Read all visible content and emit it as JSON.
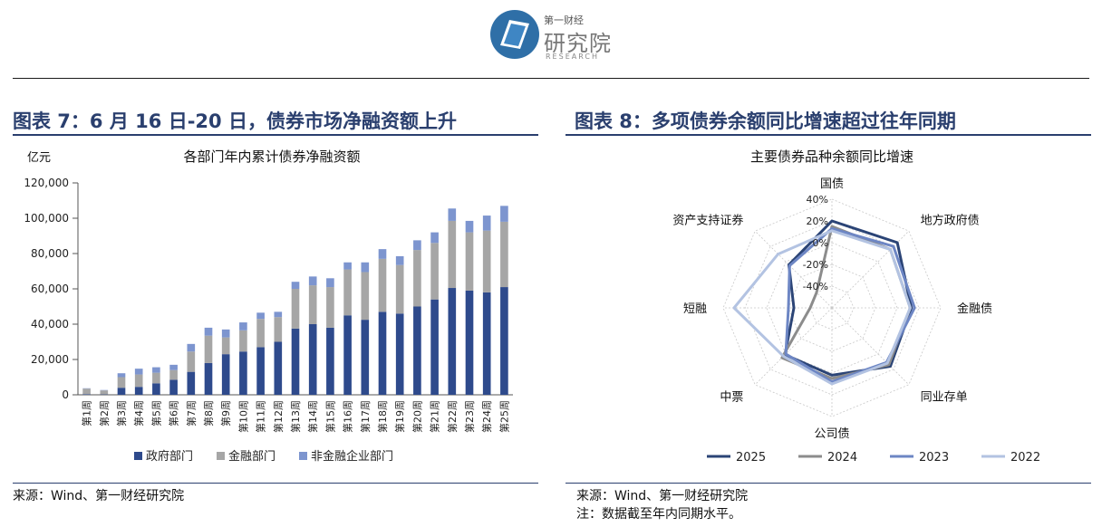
{
  "logo": {
    "small_text": "第一财经",
    "big_text": "研究院",
    "sub_text": "RESEARCH"
  },
  "left": {
    "heading": "图表 7：6 月 16 日-20 日，债券市场净融资额上升",
    "source": "来源：Wind、第一财经研究院",
    "chart_data": {
      "type": "bar",
      "stacked": true,
      "title": "各部门年内累计债券净融资额",
      "ylabel": "亿元",
      "ylim": [
        0,
        120000
      ],
      "yticks": [
        "0",
        "20,000",
        "40,000",
        "60,000",
        "80,000",
        "100,000",
        "120,000"
      ],
      "categories": [
        "第1周",
        "第2周",
        "第3周",
        "第4周",
        "第5周",
        "第6周",
        "第7周",
        "第8周",
        "第9周",
        "第10周",
        "第11周",
        "第12周",
        "第13周",
        "第14周",
        "第15周",
        "第16周",
        "第17周",
        "第18周",
        "第19周",
        "第20周",
        "第21周",
        "第22周",
        "第23周",
        "第24周",
        "第25周"
      ],
      "series": [
        {
          "name": "政府部门",
          "color": "#2e4a8c",
          "values": [
            300,
            200,
            4000,
            4500,
            6500,
            8500,
            13000,
            18000,
            23000,
            24500,
            27000,
            30000,
            37500,
            40000,
            38000,
            45000,
            42500,
            47000,
            46000,
            50000,
            54000,
            60500,
            59000,
            58000,
            61000
          ]
        },
        {
          "name": "金融部门",
          "color": "#a6a6a6",
          "values": [
            3200,
            2300,
            6000,
            7000,
            6000,
            5500,
            11500,
            15500,
            9500,
            12000,
            16000,
            14000,
            22500,
            22000,
            23000,
            26000,
            27000,
            30000,
            27500,
            32000,
            32000,
            38000,
            33000,
            35000,
            37000
          ]
        },
        {
          "name": "非金融企业部门",
          "color": "#7d95cf",
          "values": [
            200,
            200,
            2200,
            3300,
            3100,
            3000,
            4300,
            4500,
            4500,
            4500,
            3500,
            3000,
            4000,
            5000,
            5000,
            4000,
            5500,
            5500,
            5000,
            5500,
            6000,
            7000,
            6500,
            8500,
            9000
          ]
        }
      ],
      "legend_position": "bottom"
    }
  },
  "right": {
    "heading": "图表 8：多项债券余额同比增速超过往年同期",
    "source": "来源：Wind、第一财经研究院",
    "note": "注：数据截至年内同期水平。",
    "chart_data": {
      "type": "radar",
      "title": "主要债券品种余额同比增速",
      "categories": [
        "国债",
        "地方政府债",
        "金融债",
        "同业存单",
        "公司债",
        "中票",
        "短融",
        "资产支持证券"
      ],
      "rticks": [
        "-40%",
        "-20%",
        "0%",
        "20%",
        "40%"
      ],
      "rlim": [
        -60,
        40
      ],
      "series": [
        {
          "name": "2025",
          "color": "#2b4476",
          "values": [
            20,
            25,
            13,
            16,
            2,
            1,
            -25,
            -4
          ]
        },
        {
          "name": "2024",
          "color": "#8c8c8c",
          "values": [
            15,
            16,
            12,
            14,
            5,
            5,
            -40,
            -40
          ]
        },
        {
          "name": "2023",
          "color": "#6d86c4",
          "values": [
            13,
            20,
            16,
            11,
            8,
            0,
            -20,
            -5
          ]
        },
        {
          "name": "2022",
          "color": "#b3c3e2",
          "values": [
            11,
            16,
            12,
            12,
            10,
            3,
            30,
            10
          ]
        }
      ],
      "legend_position": "bottom"
    }
  }
}
